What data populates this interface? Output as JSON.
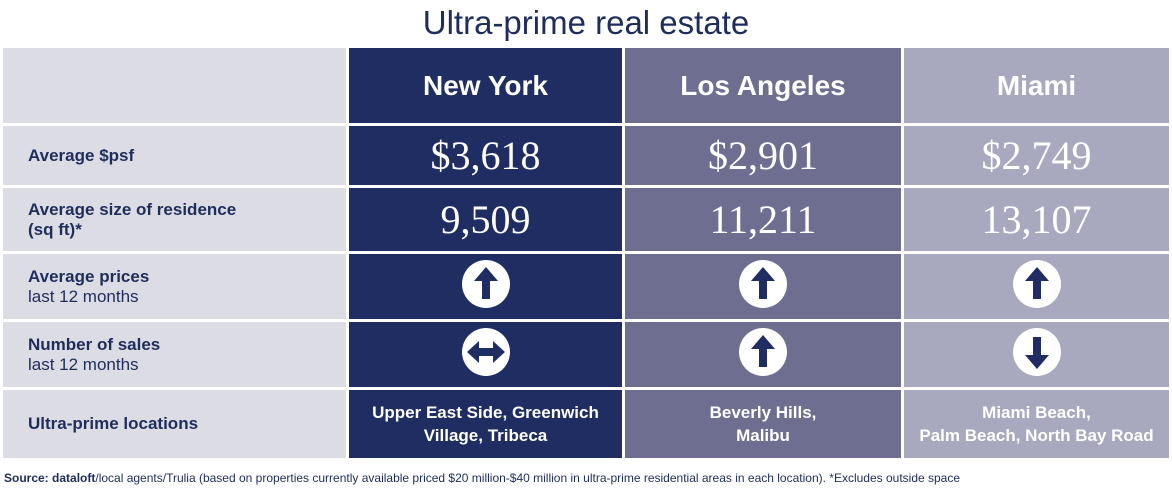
{
  "title": "Ultra-prime real estate",
  "columns": [
    "New York",
    "Los Angeles",
    "Miami"
  ],
  "rows": [
    {
      "label": "Average $psf",
      "sub": "",
      "type": "value",
      "values": [
        "$3,618",
        "$2,901",
        "$2,749"
      ]
    },
    {
      "label": "Average size of residence",
      "sub": "(sq ft)*",
      "sub_bold": true,
      "type": "value",
      "values": [
        "9,509",
        "11,211",
        "13,107"
      ]
    },
    {
      "label": "Average prices",
      "sub": "last 12 months",
      "type": "trend",
      "values": [
        "up",
        "up",
        "up"
      ]
    },
    {
      "label": "Number of sales",
      "sub": "last 12 months",
      "type": "trend",
      "values": [
        "flat",
        "up",
        "down"
      ]
    },
    {
      "label": "Ultra-prime locations",
      "sub": "",
      "type": "text",
      "values": [
        [
          "Upper East Side, Greenwich",
          "Village, Tribeca"
        ],
        [
          "Beverly Hills,",
          "Malibu"
        ],
        [
          "Miami Beach,",
          "Palm Beach, North Bay Road"
        ]
      ]
    }
  ],
  "source": {
    "prefix": "Source: ",
    "brand": "dataloft",
    "text": "/local agents/Trulia (based on properties currently available priced $20 million-$40 million in ultra-prime residential areas in each location). *Excludes outside space"
  },
  "chart_data": {
    "type": "table",
    "title": "Ultra-prime real estate",
    "columns": [
      "New York",
      "Los Angeles",
      "Miami"
    ],
    "rows": [
      {
        "metric": "Average $psf",
        "values": [
          3618,
          2901,
          2749
        ]
      },
      {
        "metric": "Average size of residence (sq ft)*",
        "values": [
          9509,
          11211,
          13107
        ]
      },
      {
        "metric": "Average prices last 12 months",
        "values": [
          "up",
          "up",
          "up"
        ]
      },
      {
        "metric": "Number of sales last 12 months",
        "values": [
          "flat",
          "up",
          "down"
        ]
      },
      {
        "metric": "Ultra-prime locations",
        "values": [
          "Upper East Side, Greenwich Village, Tribeca",
          "Beverly Hills, Malibu",
          "Miami Beach, Palm Beach, North Bay Road"
        ]
      }
    ],
    "colors": {
      "new_york": "#1f2d63",
      "los_angeles": "#6e6e91",
      "miami": "#a8a8bf",
      "label_bg": "#dcdce4",
      "text": "#1f2d5c"
    }
  }
}
